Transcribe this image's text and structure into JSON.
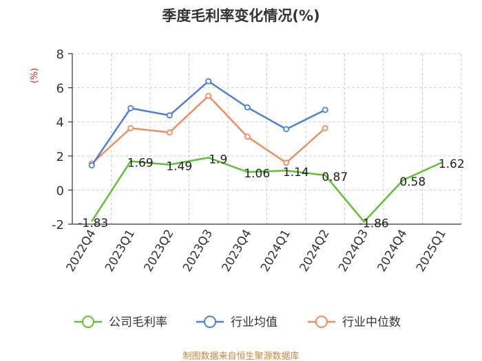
{
  "chart_data": {
    "type": "line",
    "title": "季度毛利率变化情况(%)",
    "ylabel": "(%)",
    "categories": [
      "2022Q4",
      "2023Q1",
      "2023Q2",
      "2023Q3",
      "2023Q4",
      "2024Q1",
      "2024Q2",
      "2024Q3",
      "2024Q4",
      "2025Q1"
    ],
    "y_ticks": [
      "8",
      "6",
      "4",
      "2",
      "0",
      "-2"
    ],
    "ylim": [
      -2,
      8
    ],
    "grid": true,
    "legend_position": "bottom",
    "series": [
      {
        "name": "公司毛利率",
        "color": "#5ec232",
        "values": [
          -1.83,
          1.69,
          1.49,
          1.9,
          1.06,
          1.14,
          0.87,
          -1.86,
          0.58,
          1.62
        ],
        "labels": [
          "-1.83",
          "1.69",
          "1.49",
          "1.9",
          "1.06",
          "1.14",
          "0.87",
          "-1.86",
          "0.58",
          "1.62"
        ]
      },
      {
        "name": "行业均值",
        "color": "#4a7fdc",
        "values": [
          1.45,
          4.8,
          4.38,
          6.38,
          4.85,
          3.57,
          4.7,
          null,
          null,
          null
        ]
      },
      {
        "name": "行业中位数",
        "color": "#f28c5a",
        "values": [
          1.55,
          3.63,
          3.38,
          5.52,
          3.13,
          1.6,
          3.63,
          null,
          null,
          null
        ]
      }
    ]
  },
  "source": "制图数据来自恒生聚源数据库"
}
